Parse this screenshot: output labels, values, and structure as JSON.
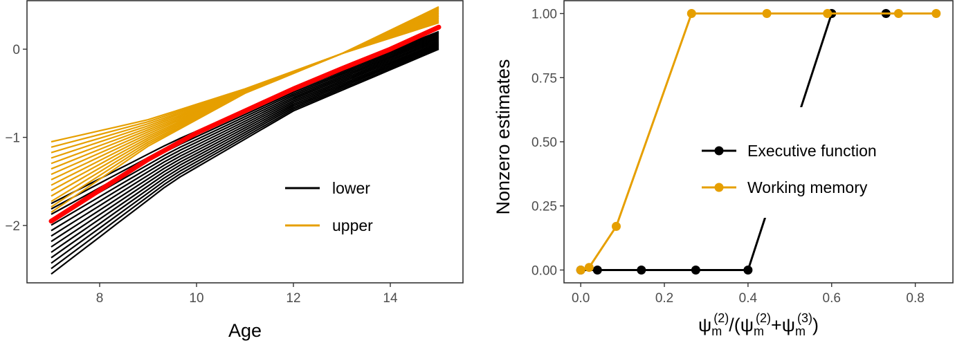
{
  "chart_data": [
    {
      "type": "line",
      "title": "",
      "xlabel": "Age",
      "ylabel": "",
      "xlim": [
        6.5,
        15.5
      ],
      "ylim": [
        -2.65,
        0.55
      ],
      "xticks": [
        8,
        10,
        12,
        14
      ],
      "xtick_labels": [
        "8",
        "10",
        "12",
        "14"
      ],
      "yticks": [
        -2,
        -1,
        0
      ],
      "ytick_labels": [
        "−2",
        "−1",
        "0"
      ],
      "grid": false,
      "legend_position": "bottom-right",
      "series": [
        {
          "name": "lower",
          "color": "#000000",
          "band": {
            "x": [
              7,
              9.5,
              12,
              15
            ],
            "low": [
              -2.55,
              -1.5,
              -0.7,
              0.0
            ],
            "high": [
              -1.75,
              -1.05,
              -0.45,
              0.2
            ]
          }
        },
        {
          "name": "upper",
          "color": "#E69F00",
          "band": {
            "x": [
              7,
              9,
              11,
              13,
              15
            ],
            "low": [
              -1.85,
              -1.1,
              -0.5,
              -0.05,
              0.3
            ],
            "high": [
              -1.05,
              -0.8,
              -0.45,
              -0.05,
              0.48
            ]
          }
        },
        {
          "color": "#FF0000",
          "x": [
            7,
            8,
            9,
            10,
            11,
            12,
            13,
            14,
            15
          ],
          "y": [
            -1.95,
            -1.6,
            -1.25,
            -0.95,
            -0.7,
            -0.45,
            -0.22,
            0.0,
            0.25
          ]
        }
      ]
    },
    {
      "type": "line",
      "title": "",
      "xlabel": "ψm(2)/(ψm(2)+ψm(3))",
      "xlabel_parts": {
        "psi": "ψ",
        "sub": "m",
        "sup2": "(2)",
        "sup3": "(3)",
        "slash": "/",
        "open": "(",
        "plus": "+",
        "close": ")"
      },
      "ylabel": "Nonzero estimates",
      "xlim": [
        -0.04,
        0.89
      ],
      "ylim": [
        -0.05,
        1.05
      ],
      "xticks": [
        0.0,
        0.2,
        0.4,
        0.6,
        0.8
      ],
      "xtick_labels": [
        "0.0",
        "0.2",
        "0.4",
        "0.6",
        "0.8"
      ],
      "yticks": [
        0.0,
        0.25,
        0.5,
        0.75,
        1.0
      ],
      "ytick_labels": [
        "0.00",
        "0.25",
        "0.50",
        "0.75",
        "1.00"
      ],
      "grid": false,
      "legend_position": "center-right",
      "series": [
        {
          "name": "Executive function",
          "color": "#000000",
          "x": [
            0.0,
            0.04,
            0.145,
            0.275,
            0.4,
            0.6,
            0.73
          ],
          "y": [
            0.0,
            0.0,
            0.0,
            0.0,
            0.0,
            1.0,
            1.0
          ]
        },
        {
          "name": "Working memory",
          "color": "#E69F00",
          "x": [
            0.0,
            0.02,
            0.085,
            0.265,
            0.445,
            0.59,
            0.76,
            0.85
          ],
          "y": [
            0.0,
            0.01,
            0.17,
            1.0,
            1.0,
            1.0,
            1.0,
            1.0
          ]
        }
      ]
    }
  ]
}
